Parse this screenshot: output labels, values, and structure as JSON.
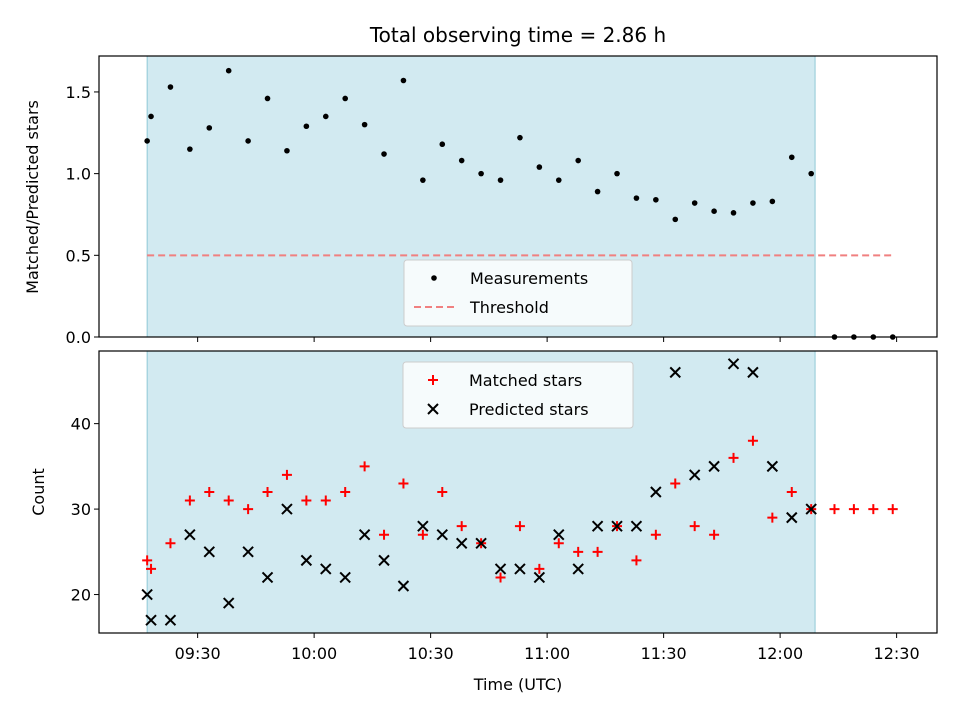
{
  "chart_data": [
    {
      "type": "scatter",
      "title": "Total observing time = 2.86 h",
      "ylabel": "Matched/Predicted stars",
      "ylim": [
        0,
        1.72
      ],
      "yticks": [
        "0.0",
        "0.5",
        "1.0",
        "1.5"
      ],
      "shaded_span": [
        "09:17",
        "12:09"
      ],
      "shade_color": "#add8e6",
      "series": [
        {
          "name": "Measurements",
          "marker": "dot",
          "color": "#000000",
          "x": [
            "09:17",
            "09:18",
            "09:23",
            "09:28",
            "09:33",
            "09:38",
            "09:43",
            "09:48",
            "09:53",
            "09:58",
            "10:03",
            "10:08",
            "10:13",
            "10:18",
            "10:23",
            "10:28",
            "10:33",
            "10:38",
            "10:43",
            "10:48",
            "10:53",
            "10:58",
            "11:03",
            "11:08",
            "11:13",
            "11:18",
            "11:23",
            "11:28",
            "11:33",
            "11:38",
            "11:43",
            "11:48",
            "11:53",
            "11:58",
            "12:03",
            "12:08",
            "12:14",
            "12:19",
            "12:24",
            "12:29"
          ],
          "y": [
            1.2,
            1.35,
            1.53,
            1.15,
            1.28,
            1.63,
            1.2,
            1.46,
            1.14,
            1.29,
            1.35,
            1.46,
            1.3,
            1.12,
            1.57,
            0.96,
            1.18,
            1.08,
            1.0,
            0.96,
            1.22,
            1.04,
            0.96,
            1.08,
            0.89,
            1.0,
            0.85,
            0.84,
            0.72,
            0.82,
            0.77,
            0.76,
            0.82,
            0.83,
            1.1,
            1.0,
            0.0,
            0.0,
            0.0,
            0.0
          ]
        },
        {
          "name": "Threshold",
          "line": "dashed",
          "color": "#f08080",
          "x": [
            "09:17",
            "12:29"
          ],
          "y": [
            0.5,
            0.5
          ]
        }
      ],
      "legend": "lower-center"
    },
    {
      "type": "scatter",
      "xlabel": "Time (UTC)",
      "ylabel": "Count",
      "ylim": [
        15.5,
        48.5
      ],
      "yticks": [
        "20",
        "30",
        "40"
      ],
      "xticks": [
        "09:30",
        "10:00",
        "10:30",
        "11:00",
        "11:30",
        "12:00",
        "12:30"
      ],
      "shaded_span": [
        "09:17",
        "12:09"
      ],
      "shade_color": "#add8e6",
      "series": [
        {
          "name": "Matched stars",
          "marker": "plus",
          "color": "#ff0000",
          "x": [
            "09:17",
            "09:18",
            "09:23",
            "09:28",
            "09:33",
            "09:38",
            "09:43",
            "09:48",
            "09:53",
            "09:58",
            "10:03",
            "10:08",
            "10:13",
            "10:18",
            "10:23",
            "10:28",
            "10:33",
            "10:38",
            "10:43",
            "10:48",
            "10:53",
            "10:58",
            "11:03",
            "11:08",
            "11:13",
            "11:18",
            "11:23",
            "11:28",
            "11:33",
            "11:38",
            "11:43",
            "11:48",
            "11:53",
            "11:58",
            "12:03",
            "12:08",
            "12:14",
            "12:19",
            "12:24",
            "12:29"
          ],
          "y": [
            24,
            23,
            26,
            31,
            32,
            31,
            30,
            32,
            34,
            31,
            31,
            32,
            35,
            27,
            33,
            27,
            32,
            28,
            26,
            22,
            28,
            23,
            26,
            25,
            25,
            28,
            24,
            27,
            33,
            28,
            27,
            36,
            38,
            29,
            32,
            30,
            30,
            30,
            30,
            30
          ]
        },
        {
          "name": "Predicted stars",
          "marker": "x",
          "color": "#000000",
          "x": [
            "09:17",
            "09:18",
            "09:23",
            "09:28",
            "09:33",
            "09:38",
            "09:43",
            "09:48",
            "09:53",
            "09:58",
            "10:03",
            "10:08",
            "10:13",
            "10:18",
            "10:23",
            "10:28",
            "10:33",
            "10:38",
            "10:43",
            "10:48",
            "10:53",
            "10:58",
            "11:03",
            "11:08",
            "11:13",
            "11:18",
            "11:23",
            "11:28",
            "11:33",
            "11:38",
            "11:43",
            "11:48",
            "11:53",
            "11:58",
            "12:03",
            "12:08"
          ],
          "y": [
            20,
            17,
            17,
            27,
            25,
            19,
            25,
            22,
            30,
            24,
            23,
            22,
            27,
            24,
            21,
            28,
            27,
            26,
            26,
            23,
            23,
            22,
            27,
            23,
            28,
            28,
            28,
            32,
            46,
            34,
            35,
            47,
            46,
            35,
            29,
            30
          ]
        }
      ],
      "legend": "upper-center"
    }
  ]
}
